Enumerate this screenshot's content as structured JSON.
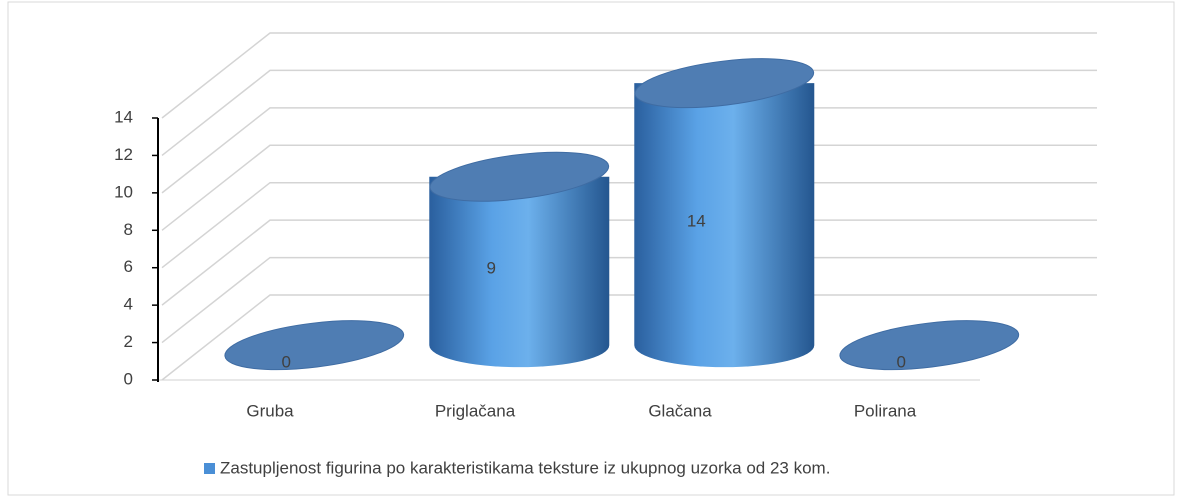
{
  "chart_data": {
    "type": "bar3d",
    "categories": [
      "Gruba",
      "Priglačana",
      "Glačana",
      "Polirana"
    ],
    "series": [
      {
        "name": "Zastupljenost figurina po karakteristikama teksture iz ukupnog uzorka od 23 kom.",
        "color": "#4a8fd6",
        "values": [
          0,
          9,
          14,
          0
        ]
      }
    ],
    "ylim": [
      0,
      14
    ],
    "yticks": [
      0,
      2,
      4,
      6,
      8,
      10,
      12,
      14
    ],
    "grid": true,
    "legend": "bottom"
  }
}
